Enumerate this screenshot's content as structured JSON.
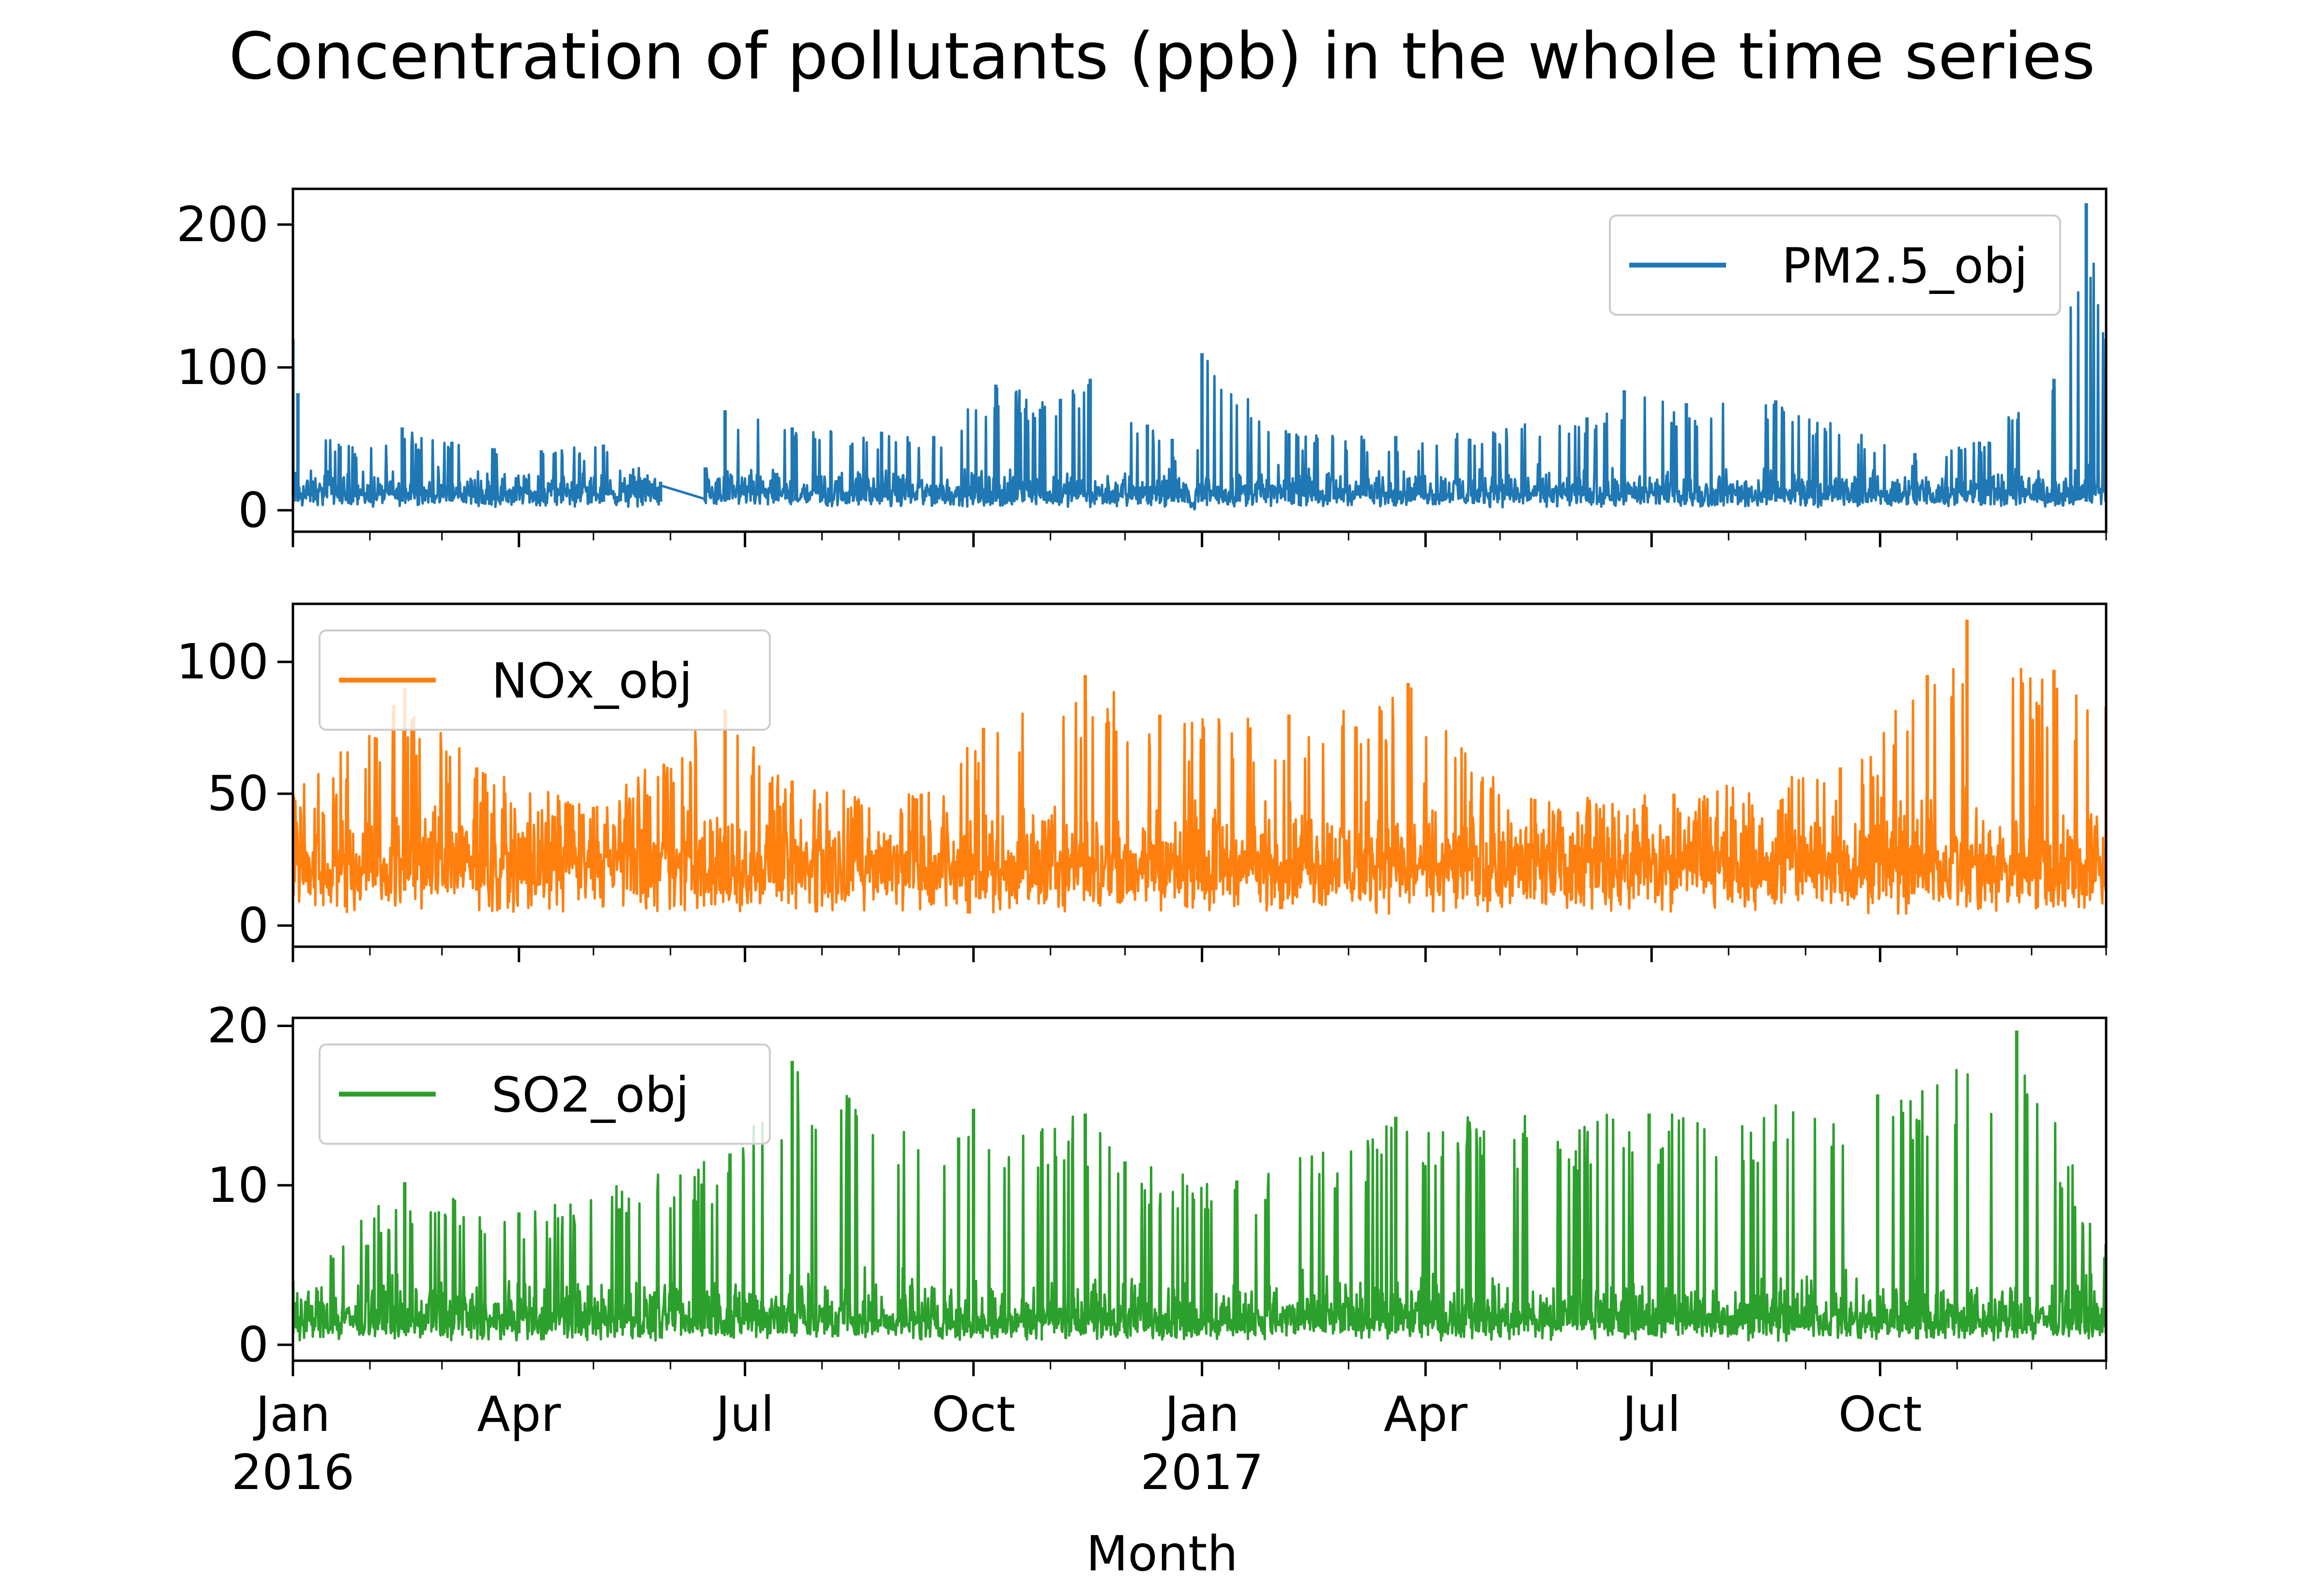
{
  "chart_data": {
    "type": "line",
    "title": "Concentration of pollutants (ppb) in the whole time series",
    "xlabel": "Month",
    "ylabel": "",
    "x_range": [
      "2016-01-01",
      "2017-12-31"
    ],
    "x_ticks": [
      {
        "date": "2016-01-01",
        "label": "Jan",
        "year": "2016"
      },
      {
        "date": "2016-04-01",
        "label": "Apr",
        "year": ""
      },
      {
        "date": "2016-07-01",
        "label": "Jul",
        "year": ""
      },
      {
        "date": "2016-10-01",
        "label": "Oct",
        "year": ""
      },
      {
        "date": "2017-01-01",
        "label": "Jan",
        "year": "2017"
      },
      {
        "date": "2017-04-01",
        "label": "Apr",
        "year": ""
      },
      {
        "date": "2017-07-01",
        "label": "Jul",
        "year": ""
      },
      {
        "date": "2017-10-01",
        "label": "Oct",
        "year": ""
      }
    ],
    "grid": false,
    "series": [
      {
        "name": "PM2.5_obj",
        "color": "#1f77b4",
        "legend_loc": "upper right",
        "ylim": [
          -15,
          225
        ],
        "yticks": [
          0,
          100,
          200
        ],
        "gap": [
          "2016-05-28",
          "2016-06-15"
        ],
        "points": [
          [
            "2016-01-01",
            120
          ],
          [
            "2016-01-03",
            82
          ],
          [
            "2016-01-20",
            45
          ],
          [
            "2016-02-14",
            58
          ],
          [
            "2016-03-05",
            48
          ],
          [
            "2016-04-10",
            42
          ],
          [
            "2016-05-05",
            46
          ],
          [
            "2016-05-28",
            20
          ],
          [
            "2016-06-15",
            30
          ],
          [
            "2016-06-23",
            70
          ],
          [
            "2016-07-20",
            58
          ],
          [
            "2016-08-25",
            55
          ],
          [
            "2016-09-15",
            52
          ],
          [
            "2016-10-10",
            88
          ],
          [
            "2016-11-05",
            78
          ],
          [
            "2016-11-17",
            92
          ],
          [
            "2016-12-10",
            60
          ],
          [
            "2016-12-20",
            50
          ],
          [
            "2016-12-29",
            1
          ],
          [
            "2017-01-01",
            110
          ],
          [
            "2017-02-05",
            54
          ],
          [
            "2017-03-20",
            52
          ],
          [
            "2017-06-05",
            65
          ],
          [
            "2017-06-20",
            84
          ],
          [
            "2017-07-15",
            75
          ],
          [
            "2017-08-20",
            77
          ],
          [
            "2017-10-15",
            40
          ],
          [
            "2017-11-10",
            48
          ],
          [
            "2017-12-10",
            92
          ],
          [
            "2017-12-23",
            215
          ],
          [
            "2017-12-31",
            120
          ]
        ],
        "base": 10,
        "amp": 22
      },
      {
        "name": "NOx_obj",
        "color": "#ff7f0e",
        "legend_loc": "upper left",
        "ylim": [
          -8,
          122
        ],
        "yticks": [
          0,
          50,
          100
        ],
        "gap": null,
        "points": [
          [
            "2016-01-01",
            50
          ],
          [
            "2016-02-15",
            90
          ],
          [
            "2016-03-15",
            60
          ],
          [
            "2016-05-01",
            45
          ],
          [
            "2016-06-23",
            82
          ],
          [
            "2016-07-20",
            55
          ],
          [
            "2016-09-10",
            50
          ],
          [
            "2016-10-05",
            75
          ],
          [
            "2016-11-15",
            95
          ],
          [
            "2016-12-15",
            80
          ],
          [
            "2017-02-05",
            80
          ],
          [
            "2017-03-25",
            92
          ],
          [
            "2017-05-15",
            48
          ],
          [
            "2017-07-10",
            50
          ],
          [
            "2017-09-15",
            60
          ],
          [
            "2017-10-20",
            95
          ],
          [
            "2017-11-05",
            116
          ],
          [
            "2017-12-10",
            97
          ],
          [
            "2017-12-31",
            83
          ]
        ],
        "base": 22,
        "amp": 30
      },
      {
        "name": "SO2_obj",
        "color": "#2ca02c",
        "legend_loc": "upper left",
        "ylim": [
          -1,
          20.5
        ],
        "yticks": [
          0,
          10,
          20
        ],
        "gap": null,
        "points": [
          [
            "2016-01-01",
            4
          ],
          [
            "2016-02-15",
            10.2
          ],
          [
            "2016-04-01",
            8.3
          ],
          [
            "2016-06-25",
            12
          ],
          [
            "2016-07-20",
            17.8
          ],
          [
            "2016-09-25",
            13
          ],
          [
            "2016-10-01",
            14.8
          ],
          [
            "2016-11-15",
            14.5
          ],
          [
            "2016-12-01",
            11.5
          ],
          [
            "2017-01-15",
            10.3
          ],
          [
            "2017-03-20",
            14.3
          ],
          [
            "2017-06-30",
            14.5
          ],
          [
            "2017-09-30",
            15.7
          ],
          [
            "2017-11-25",
            19.7
          ],
          [
            "2017-12-31",
            6.3
          ]
        ],
        "base": 1.2,
        "amp": 3.5
      }
    ]
  }
}
